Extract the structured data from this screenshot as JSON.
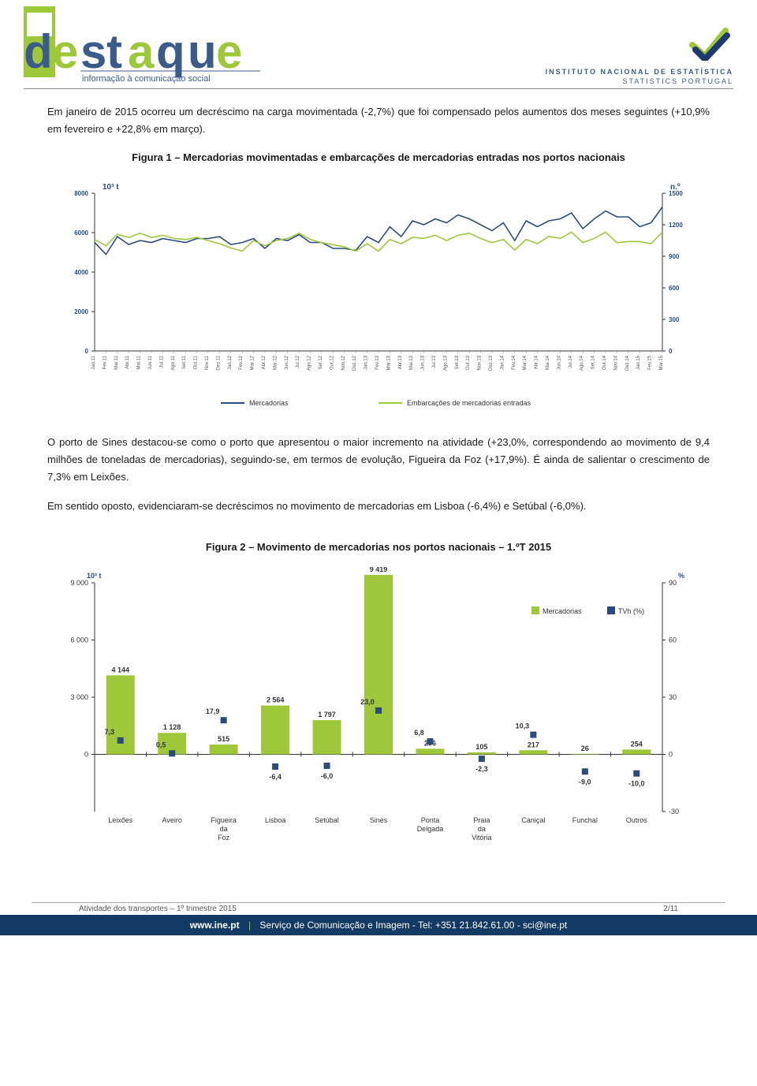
{
  "header": {
    "logo_word": "destaque",
    "logo_tagline": "informação à comunicação social",
    "ine_line1": "INSTITUTO NACIONAL DE ESTATÍSTICA",
    "ine_line2": "STATISTICS PORTUGAL"
  },
  "body": {
    "p1": "Em janeiro de 2015 ocorreu um decréscimo na carga movimentada (-2,7%) que foi compensado pelos aumentos dos meses seguintes (+10,9% em fevereiro e +22,8% em março).",
    "fig1_title": "Figura 1 – Mercadorias movimentadas e embarcações de mercadorias entradas nos portos nacionais",
    "p2": "O porto de Sines destacou-se como o porto que apresentou o maior incremento na atividade (+23,0%, correspondendo ao movimento de 9,4 milhões de toneladas de mercadorias), seguindo-se, em termos de evolução, Figueira da Foz (+17,9%). É ainda de salientar o crescimento de 7,3% em Leixões.",
    "p3": "Em sentido oposto, evidenciaram-se decréscimos no movimento de mercadorias em Lisboa (-6,4%) e Setúbal (-6,0%).",
    "fig2_title": "Figura 2 – Movimento de mercadorias nos portos nacionais – 1.ºT 2015"
  },
  "chart1": {
    "type": "line",
    "left_unit": "10³ t",
    "right_unit": "n.º",
    "left_ticks": [
      0,
      2000,
      4000,
      6000,
      8000
    ],
    "right_ticks": [
      0,
      300,
      600,
      900,
      1200,
      1500
    ],
    "x_labels": [
      "Jan.11",
      "Fev.11",
      "Mar.11",
      "Abr.11",
      "Mai.11",
      "Jun.11",
      "Jul.11",
      "Ago.11",
      "Set.11",
      "Out.11",
      "Nov.11",
      "Dez.11",
      "Jan.12",
      "Fev.12",
      "Mar.12",
      "Abr.12",
      "Mai.12",
      "Jun.12",
      "Jul.12",
      "Ago.12",
      "Set.12",
      "Out.12",
      "Nov.12",
      "Dez.12",
      "Jan.13",
      "Fev.13",
      "Mar.13",
      "Abr.13",
      "Mai.13",
      "Jun.13",
      "Jul.13",
      "Ago.13",
      "Set.13",
      "Out.13",
      "Nov.13",
      "Dez.13",
      "Jan.14",
      "Fev.14",
      "Mar.14",
      "Abr.14",
      "Mai.14",
      "Jun.14",
      "Jul.14",
      "Ago.14",
      "Set.14",
      "Out.14",
      "Nov.14",
      "Dez.14",
      "Jan.15",
      "Fev.15",
      "Mar.15"
    ],
    "series": [
      {
        "name": "Mercadorias",
        "color": "#2a4b7c",
        "axis": "left",
        "values": [
          5500,
          4900,
          5800,
          5400,
          5600,
          5500,
          5700,
          5600,
          5500,
          5700,
          5700,
          5800,
          5400,
          5500,
          5700,
          5200,
          5700,
          5600,
          5900,
          5500,
          5500,
          5200,
          5200,
          5100,
          5800,
          5500,
          6300,
          5800,
          6600,
          6400,
          6700,
          6500,
          6900,
          6700,
          6400,
          6100,
          6500,
          5600,
          6600,
          6300,
          6600,
          6700,
          7000,
          6200,
          6700,
          7100,
          6800,
          6800,
          6300,
          6500,
          7300
        ]
      },
      {
        "name": "Embarcações de mercadorias entradas",
        "color": "#9ec83a",
        "axis": "right",
        "values": [
          1060,
          1000,
          1110,
          1080,
          1120,
          1080,
          1100,
          1070,
          1060,
          1080,
          1050,
          1020,
          980,
          950,
          1050,
          1000,
          1050,
          1070,
          1120,
          1060,
          1030,
          1010,
          990,
          950,
          1020,
          950,
          1060,
          1020,
          1080,
          1070,
          1100,
          1050,
          1100,
          1120,
          1070,
          1030,
          1060,
          960,
          1060,
          1020,
          1090,
          1070,
          1130,
          1030,
          1070,
          1130,
          1030,
          1040,
          1040,
          1020,
          1130
        ]
      }
    ],
    "legend": [
      "Mercadorias",
      "Embarcações de mercadorias entradas"
    ],
    "background": "#ffffff",
    "axis_color": "#333333",
    "tick_fontsize": 8,
    "label_fontsize": 6
  },
  "chart2": {
    "type": "bar+point",
    "left_unit": "10³ t",
    "right_unit": "%",
    "left_ticks": [
      0,
      3000,
      6000,
      9000
    ],
    "right_ticks": [
      -30,
      0,
      30,
      60,
      90
    ],
    "categories": [
      "Leixões",
      "Aveiro",
      "Figueira da Foz",
      "Lisboa",
      "Setúbal",
      "Sines",
      "Ponta Delgada",
      "Praia da Vitória",
      "Caniçal",
      "Funchal",
      "Outros"
    ],
    "bars": {
      "name": "Mercadorias",
      "color": "#9ec83a",
      "values": [
        4144,
        1128,
        515,
        2564,
        1797,
        9419,
        296,
        105,
        217,
        26,
        254
      ]
    },
    "points": {
      "name": "TVh (%)",
      "color": "#2a4b7c",
      "values": [
        7.3,
        0.5,
        17.9,
        -6.4,
        -6.0,
        23.0,
        6.8,
        -2.3,
        10.3,
        -9.0,
        -10.0
      ],
      "labels": [
        "7,3",
        "0,5",
        "17,9",
        "-6,4",
        "-6,0",
        "23,0",
        "6,8",
        "-2,3",
        "10,3",
        "-9,0",
        "-10,0"
      ]
    },
    "legend": [
      "Mercadorias",
      "TVh (%)"
    ],
    "background": "#ffffff",
    "axis_color": "#333333",
    "tick_fontsize": 9,
    "cat_fontsize": 9
  },
  "footer": {
    "doc_title": "Atividade dos transportes – 1º trimestre 2015",
    "page_num": "2/11",
    "site": "www.ine.pt",
    "contact": "Serviço de Comunicação e Imagem - Tel: +351 21.842.61.00 - sci@ine.pt"
  }
}
